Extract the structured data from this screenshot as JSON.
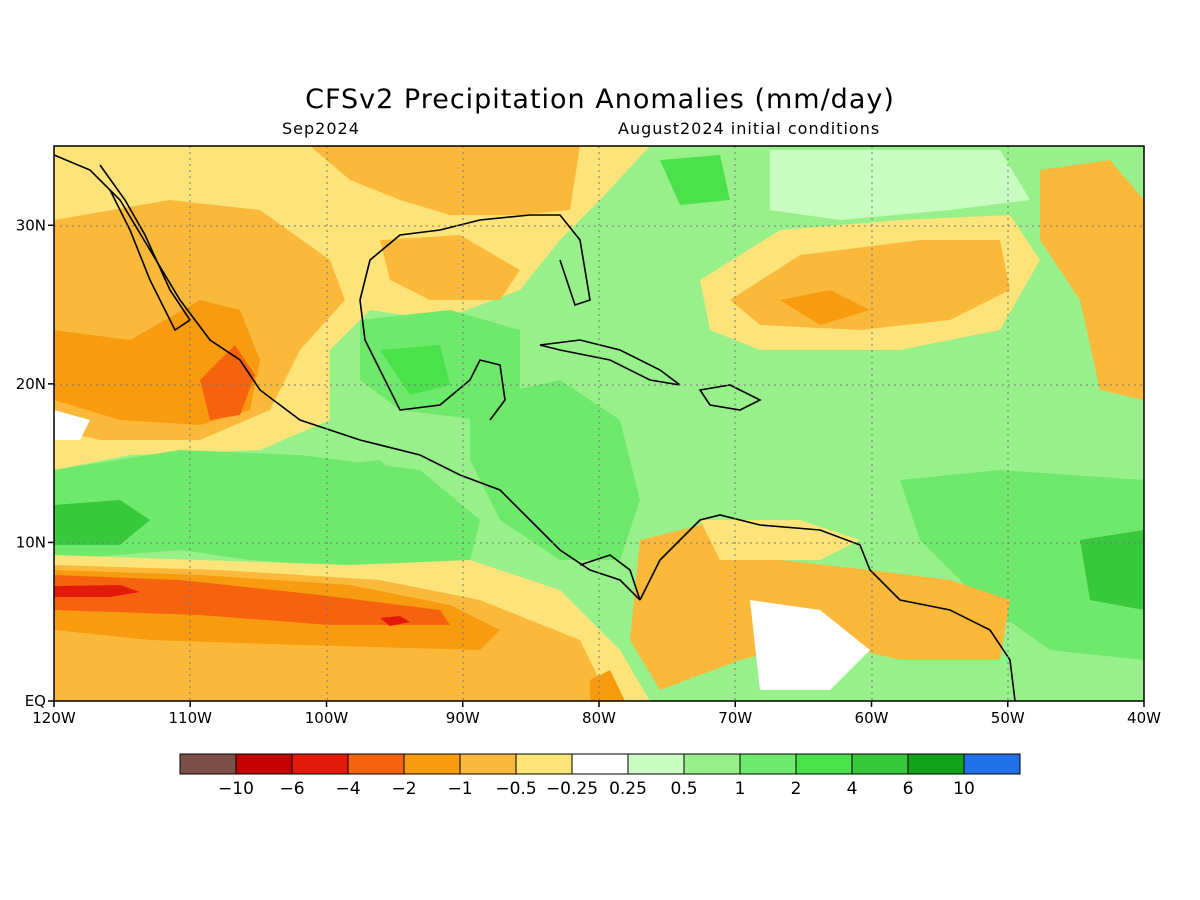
{
  "header": {
    "title": "CFSv2 Precipitation Anomalies (mm/day)",
    "valid_month": "Sep2024",
    "initial_conditions": "August2024 initial conditions"
  },
  "map": {
    "lat_ticks": [
      "30N",
      "20N",
      "10N",
      "EQ"
    ],
    "lon_ticks": [
      "120W",
      "110W",
      "100W",
      "90W",
      "80W",
      "70W",
      "60W",
      "50W",
      "40W"
    ],
    "lon_range": [
      -120,
      -40
    ],
    "lat_range": [
      0,
      35
    ],
    "gridlines": "dotted"
  },
  "colorbar": {
    "colors": [
      "#7b4f48",
      "#c30000",
      "#e31a0a",
      "#f5630f",
      "#f99b0e",
      "#fbb93c",
      "#fde47a",
      "#ffffff",
      "#c9fcc0",
      "#97f08a",
      "#6ee96b",
      "#4ae14b",
      "#37c83b",
      "#12a31a",
      "#2170e8"
    ],
    "labels": [
      "−10",
      "−6",
      "−4",
      "−2",
      "−1",
      "−0.5",
      "−0.25",
      "0.25",
      "0.5",
      "1",
      "2",
      "4",
      "6",
      "10"
    ]
  },
  "colors": {
    "wet_strong": "#4ae14b",
    "wet": "#6ee96b",
    "wet_light": "#97f08a",
    "wet_faint": "#c9fcc0",
    "dry_faint": "#fde47a",
    "dry_light": "#fbb93c",
    "dry": "#f99b0e",
    "dry_strong": "#f5630f",
    "dry_extreme": "#e31a0a",
    "coast": "#000000"
  }
}
